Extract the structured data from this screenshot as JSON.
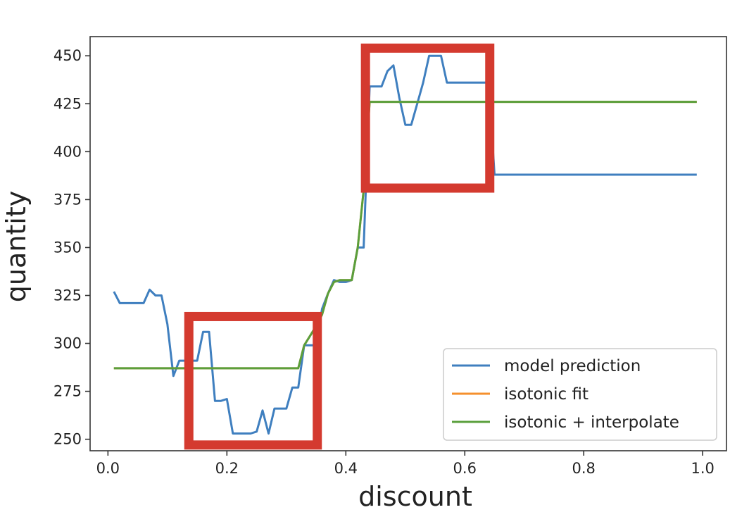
{
  "chart_data": {
    "type": "line",
    "title": "",
    "xlabel": "discount",
    "ylabel": "quantity",
    "xlim": [
      -0.03,
      1.04
    ],
    "ylim": [
      244,
      460
    ],
    "xticks": [
      0.0,
      0.2,
      0.4,
      0.6,
      0.8,
      1.0
    ],
    "xtick_labels": [
      "0.0",
      "0.2",
      "0.4",
      "0.6",
      "0.8",
      "1.0"
    ],
    "yticks": [
      250,
      275,
      300,
      325,
      350,
      375,
      400,
      425,
      450
    ],
    "ytick_labels": [
      "250",
      "275",
      "300",
      "325",
      "350",
      "375",
      "400",
      "425",
      "450"
    ],
    "grid": false,
    "legend_position": "lower-right",
    "series": [
      {
        "name": "model prediction",
        "color": "#3f7fbf",
        "points": [
          [
            0.01,
            327
          ],
          [
            0.02,
            321
          ],
          [
            0.03,
            321
          ],
          [
            0.04,
            321
          ],
          [
            0.05,
            321
          ],
          [
            0.06,
            321
          ],
          [
            0.07,
            328
          ],
          [
            0.08,
            325
          ],
          [
            0.09,
            325
          ],
          [
            0.1,
            310
          ],
          [
            0.11,
            283
          ],
          [
            0.12,
            291
          ],
          [
            0.13,
            291
          ],
          [
            0.14,
            291
          ],
          [
            0.15,
            291
          ],
          [
            0.16,
            306
          ],
          [
            0.17,
            306
          ],
          [
            0.18,
            270
          ],
          [
            0.19,
            270
          ],
          [
            0.2,
            271
          ],
          [
            0.21,
            253
          ],
          [
            0.22,
            253
          ],
          [
            0.23,
            253
          ],
          [
            0.24,
            253
          ],
          [
            0.25,
            254
          ],
          [
            0.26,
            265
          ],
          [
            0.27,
            253
          ],
          [
            0.28,
            266
          ],
          [
            0.29,
            266
          ],
          [
            0.3,
            266
          ],
          [
            0.31,
            277
          ],
          [
            0.32,
            277
          ],
          [
            0.33,
            299
          ],
          [
            0.34,
            299
          ],
          [
            0.35,
            299
          ],
          [
            0.36,
            318
          ],
          [
            0.37,
            326
          ],
          [
            0.38,
            333
          ],
          [
            0.39,
            332
          ],
          [
            0.4,
            332
          ],
          [
            0.41,
            333
          ],
          [
            0.42,
            350
          ],
          [
            0.43,
            350
          ],
          [
            0.44,
            434
          ],
          [
            0.45,
            434
          ],
          [
            0.46,
            434
          ],
          [
            0.47,
            442
          ],
          [
            0.48,
            445
          ],
          [
            0.49,
            428
          ],
          [
            0.5,
            414
          ],
          [
            0.51,
            414
          ],
          [
            0.52,
            425
          ],
          [
            0.53,
            436
          ],
          [
            0.54,
            450
          ],
          [
            0.55,
            450
          ],
          [
            0.56,
            450
          ],
          [
            0.57,
            436
          ],
          [
            0.58,
            436
          ],
          [
            0.59,
            436
          ],
          [
            0.6,
            436
          ],
          [
            0.61,
            436
          ],
          [
            0.62,
            436
          ],
          [
            0.63,
            436
          ],
          [
            0.64,
            436
          ],
          [
            0.65,
            388
          ],
          [
            0.7,
            388
          ],
          [
            0.8,
            388
          ],
          [
            0.9,
            388
          ],
          [
            0.99,
            388
          ]
        ]
      },
      {
        "name": "isotonic fit",
        "color": "#f5902e",
        "points": [
          [
            0.01,
            287
          ],
          [
            0.1,
            287
          ],
          [
            0.2,
            287
          ],
          [
            0.31,
            287
          ],
          [
            0.32,
            287
          ],
          [
            0.33,
            299
          ],
          [
            0.34,
            304
          ],
          [
            0.35,
            309
          ],
          [
            0.36,
            315
          ],
          [
            0.37,
            326
          ],
          [
            0.38,
            332
          ],
          [
            0.39,
            333
          ],
          [
            0.4,
            333
          ],
          [
            0.41,
            333
          ],
          [
            0.42,
            350
          ],
          [
            0.43,
            380
          ],
          [
            0.44,
            426
          ],
          [
            0.5,
            426
          ],
          [
            0.6,
            426
          ],
          [
            0.7,
            426
          ],
          [
            0.8,
            426
          ],
          [
            0.9,
            426
          ],
          [
            0.99,
            426
          ]
        ]
      },
      {
        "name": "isotonic + interpolate",
        "color": "#5a9f3c",
        "points": [
          [
            0.01,
            287
          ],
          [
            0.1,
            287
          ],
          [
            0.2,
            287
          ],
          [
            0.31,
            287
          ],
          [
            0.32,
            287
          ],
          [
            0.33,
            299
          ],
          [
            0.34,
            304
          ],
          [
            0.35,
            309
          ],
          [
            0.36,
            315
          ],
          [
            0.37,
            326
          ],
          [
            0.38,
            332
          ],
          [
            0.39,
            333
          ],
          [
            0.4,
            333
          ],
          [
            0.41,
            333
          ],
          [
            0.42,
            350
          ],
          [
            0.43,
            380
          ],
          [
            0.44,
            426
          ],
          [
            0.5,
            426
          ],
          [
            0.6,
            426
          ],
          [
            0.7,
            426
          ],
          [
            0.8,
            426
          ],
          [
            0.9,
            426
          ],
          [
            0.99,
            426
          ]
        ]
      }
    ],
    "annotations": [
      {
        "type": "highlight-box",
        "color": "#d43a2f",
        "x_range": [
          0.136,
          0.352
        ],
        "y_range": [
          247,
          314
        ]
      },
      {
        "type": "highlight-box",
        "color": "#d43a2f",
        "x_range": [
          0.433,
          0.642
        ],
        "y_range": [
          381,
          454
        ]
      }
    ]
  }
}
